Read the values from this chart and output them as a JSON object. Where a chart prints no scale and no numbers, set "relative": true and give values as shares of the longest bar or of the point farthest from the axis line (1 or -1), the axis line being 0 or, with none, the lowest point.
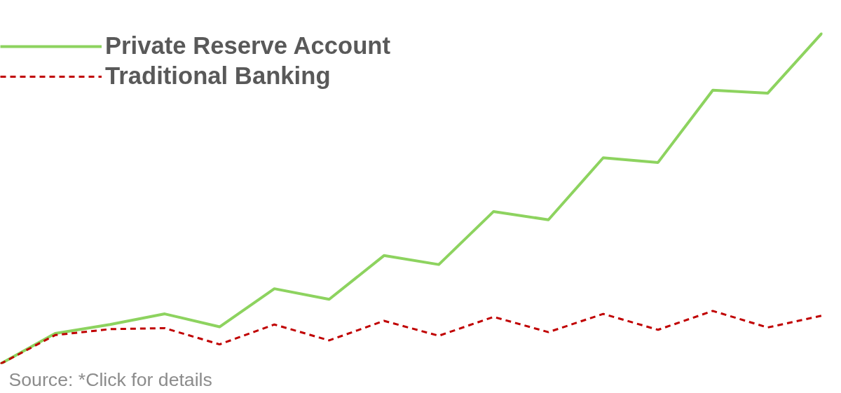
{
  "chart_data": {
    "type": "line",
    "relative": true,
    "legend": "top left",
    "categories": [
      null,
      null,
      null,
      null,
      null,
      null,
      null,
      null,
      null,
      null,
      null,
      null,
      null,
      null,
      null,
      null
    ],
    "series": [
      {
        "name": "Private Reserve Account",
        "color": "#8dd35f",
        "line_style": "solid",
        "values": [
          0,
          0.092,
          0.119,
          0.151,
          0.112,
          0.227,
          0.195,
          0.327,
          0.3,
          0.46,
          0.435,
          0.622,
          0.608,
          0.826,
          0.817,
          1
        ]
      },
      {
        "name": "Traditional Banking",
        "color": "#c00000",
        "line_style": "dashed",
        "values": [
          0,
          0.087,
          0.105,
          0.108,
          0.059,
          0.119,
          0.071,
          0.13,
          0.085,
          0.142,
          0.096,
          0.151,
          0.103,
          0.16,
          0.11,
          0.146
        ]
      }
    ],
    "annotations": [
      "Source: *Click for details"
    ]
  }
}
